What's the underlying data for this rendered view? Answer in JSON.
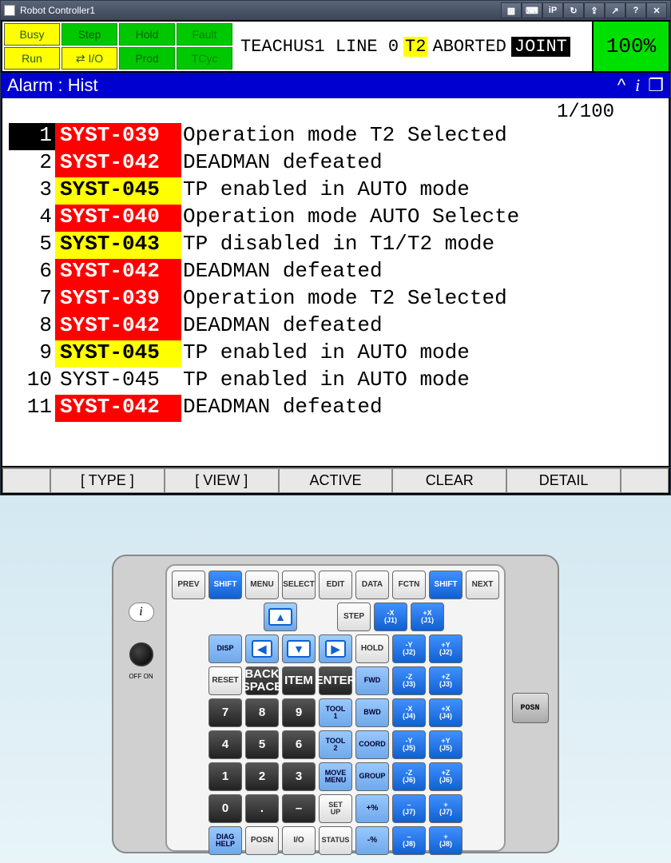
{
  "window": {
    "title": "Robot Controller1"
  },
  "titlebar_icons": [
    "▦",
    "⌨",
    "iP",
    "↻",
    "⇪",
    "↗",
    "?",
    "✕"
  ],
  "status_grid": [
    {
      "label": "Busy",
      "class": "sc-yellow"
    },
    {
      "label": "Step",
      "class": "sc-green"
    },
    {
      "label": "Hold",
      "class": "sc-green"
    },
    {
      "label": "Fault",
      "class": "sc-green2"
    },
    {
      "label": "Run",
      "class": "sc-yellow"
    },
    {
      "label": "⇄ I/O",
      "class": "sc-yellow"
    },
    {
      "label": "Prod",
      "class": "sc-green"
    },
    {
      "label": "TCyc",
      "class": "sc-green2"
    }
  ],
  "statusline": {
    "prog": "TEACHUS1 LINE 0",
    "mode": "T2",
    "state": "ABORTED",
    "coord": "JOINT",
    "override": "100%"
  },
  "bluebar": {
    "title": "Alarm : Hist",
    "caret": "^",
    "info": "i",
    "win": "❐"
  },
  "pager": "1/100",
  "alarms": [
    {
      "n": "1",
      "code": "SYST-039",
      "sev": "red",
      "msg": "Operation mode T2 Selected",
      "sel": true
    },
    {
      "n": "2",
      "code": "SYST-042",
      "sev": "red",
      "msg": "DEADMAN defeated"
    },
    {
      "n": "3",
      "code": "SYST-045",
      "sev": "yellow",
      "msg": "TP enabled in AUTO mode"
    },
    {
      "n": "4",
      "code": "SYST-040",
      "sev": "red",
      "msg": "Operation mode AUTO Selecte"
    },
    {
      "n": "5",
      "code": "SYST-043",
      "sev": "yellow",
      "msg": "TP disabled in T1/T2 mode"
    },
    {
      "n": "6",
      "code": "SYST-042",
      "sev": "red",
      "msg": "DEADMAN defeated"
    },
    {
      "n": "7",
      "code": "SYST-039",
      "sev": "red",
      "msg": "Operation mode T2 Selected"
    },
    {
      "n": "8",
      "code": "SYST-042",
      "sev": "red",
      "msg": "DEADMAN defeated"
    },
    {
      "n": "9",
      "code": "SYST-045",
      "sev": "yellow",
      "msg": "TP enabled in AUTO mode"
    },
    {
      "n": "10",
      "code": "SYST-045",
      "sev": "white",
      "msg": "TP enabled in AUTO mode"
    },
    {
      "n": "11",
      "code": "SYST-042",
      "sev": "red",
      "msg": "DEADMAN defeated"
    }
  ],
  "softkeys": [
    "",
    "[ TYPE ]",
    "[ VIEW ]",
    "ACTIVE",
    "CLEAR",
    "DETAIL",
    ""
  ],
  "pendant": {
    "row0": [
      "PREV",
      "SHIFT",
      "MENU",
      "SELECT",
      "EDIT",
      "DATA",
      "FCTN",
      "SHIFT",
      "NEXT"
    ],
    "row0_class": [
      "w",
      "b",
      "w",
      "w",
      "w",
      "w",
      "w",
      "b",
      "w"
    ],
    "step": "STEP",
    "hold": "HOLD",
    "jog": [
      [
        "-X\n(J1)",
        "+X\n(J1)"
      ],
      [
        "-Y\n(J2)",
        "+Y\n(J2)"
      ],
      [
        "-Z\n(J3)",
        "+Z\n(J3)"
      ],
      [
        "-X\n(J4)",
        "+X\n(J4)"
      ],
      [
        "-Y\n(J5)",
        "+Y\n(J5)"
      ],
      [
        "-Z\n(J6)",
        "+Z\n(J6)"
      ],
      [
        "–\n(J7)",
        "+\n(J7)"
      ],
      [
        "–\n(J8)",
        "+\n(J8)"
      ]
    ],
    "disp": "DISP",
    "reset": "RESET",
    "backspace": "BACK\nSPACE",
    "item": "ITEM",
    "enter": "ENTER",
    "fwd": "FWD",
    "bwd": "BWD",
    "coord": "COORD",
    "group": "GROUP",
    "tool1": "TOOL\n1",
    "tool2": "TOOL\n2",
    "movemenu": "MOVE\nMENU",
    "setup": "SET\nUP",
    "pctp": "+%",
    "pctm": "-%",
    "diag": "DIAG\nHELP",
    "posn": "POSN",
    "io": "I/O",
    "status": "STATUS",
    "posn_side": "POSN",
    "info": "i",
    "offon": "OFF  ON"
  }
}
